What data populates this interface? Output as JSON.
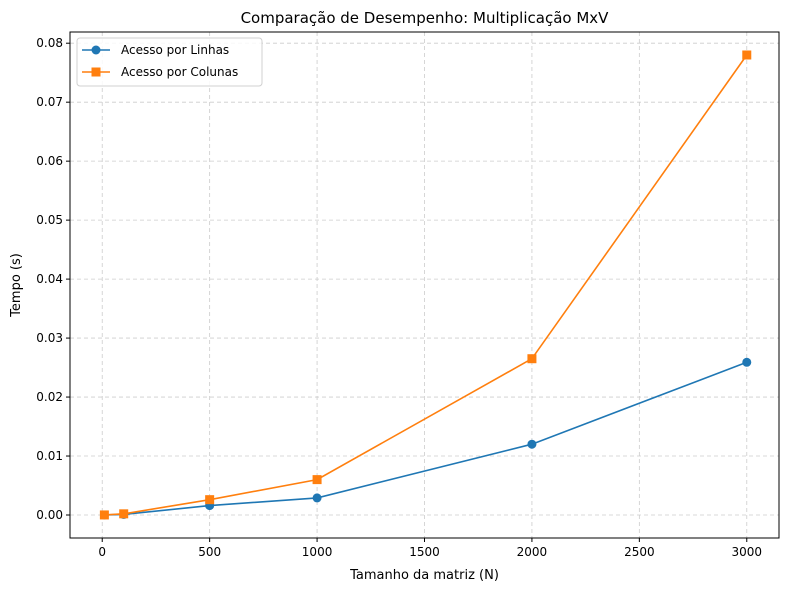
{
  "chart_data": {
    "type": "line",
    "title": "Comparação de Desempenho: Multiplicação MxV",
    "xlabel": "Tamanho da matriz (N)",
    "ylabel": "Tempo (s)",
    "xlim": [
      -150,
      3150
    ],
    "ylim": [
      -0.0039,
      0.0819
    ],
    "x_ticks": [
      0,
      500,
      1000,
      1500,
      2000,
      2500,
      3000
    ],
    "x_tick_labels": [
      "0",
      "500",
      "1000",
      "1500",
      "2000",
      "2500",
      "3000"
    ],
    "y_ticks": [
      0.0,
      0.01,
      0.02,
      0.03,
      0.04,
      0.05,
      0.06,
      0.07,
      0.08
    ],
    "y_tick_labels": [
      "0.00",
      "0.01",
      "0.02",
      "0.03",
      "0.04",
      "0.05",
      "0.06",
      "0.07",
      "0.08"
    ],
    "grid": true,
    "legend_position": "top-left",
    "x": [
      10,
      100,
      500,
      1000,
      2000,
      3000
    ],
    "series": [
      {
        "name": "Acesso por Linhas",
        "color": "#1f77b4",
        "marker": "circle",
        "values": [
          1e-05,
          0.0001,
          0.0016,
          0.0029,
          0.012,
          0.0259
        ]
      },
      {
        "name": "Acesso por Colunas",
        "color": "#ff7f0e",
        "marker": "square",
        "values": [
          1e-05,
          0.0002,
          0.0026,
          0.006,
          0.0265,
          0.078
        ]
      }
    ]
  }
}
